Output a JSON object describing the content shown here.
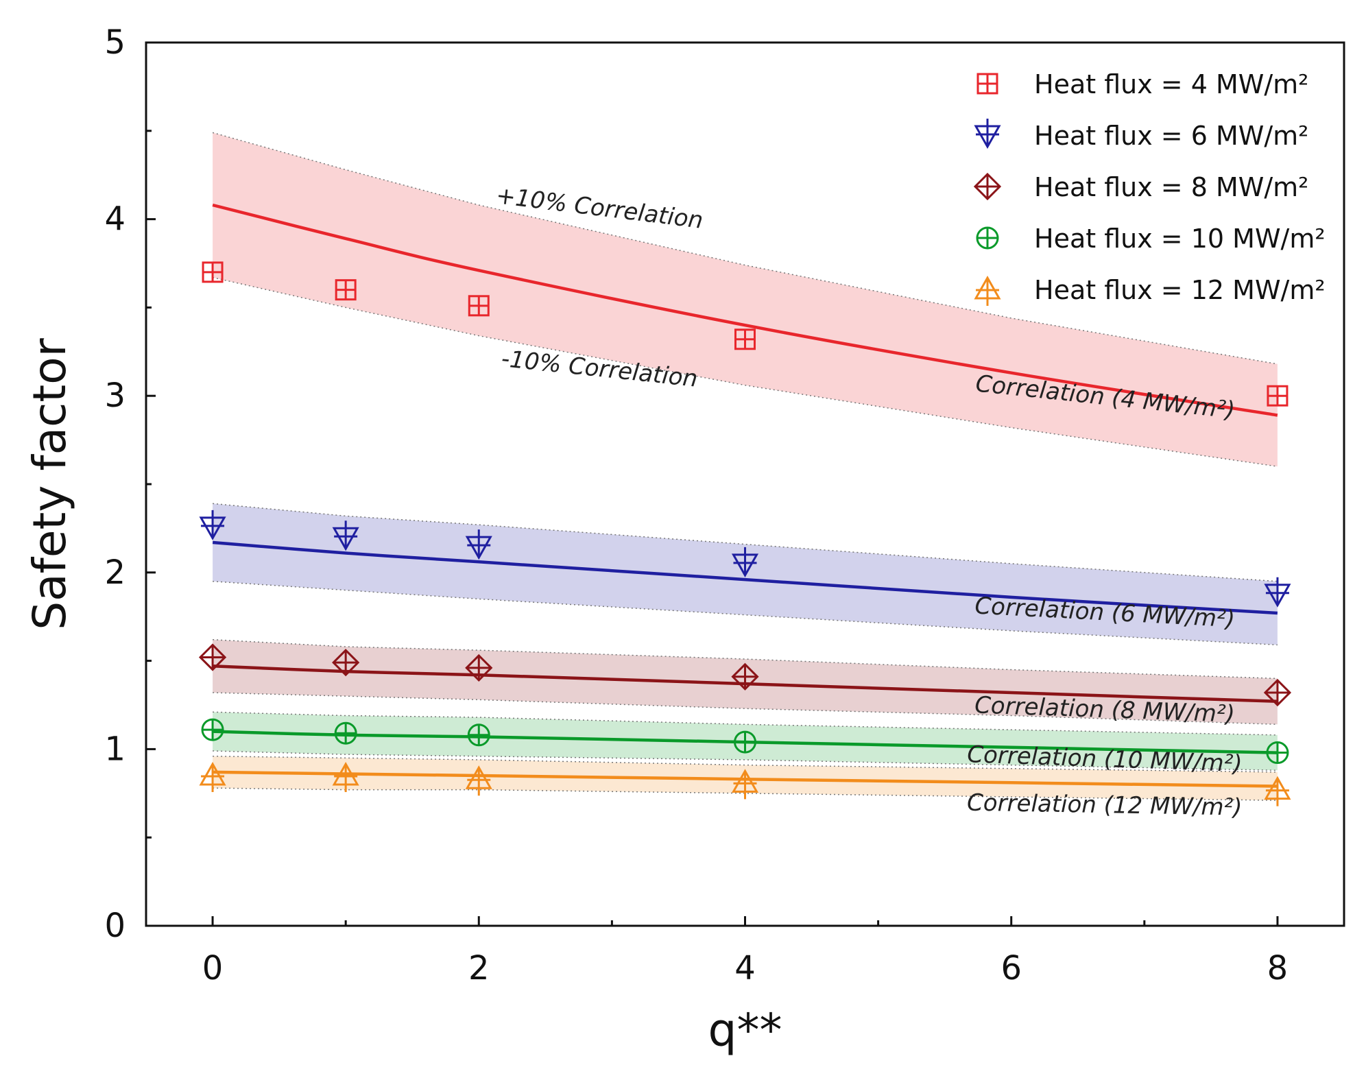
{
  "chart_data": {
    "type": "scatter",
    "xlabel": "q**",
    "ylabel": "Safety factor",
    "xlim": [
      -0.5,
      8.5
    ],
    "ylim": [
      0,
      5
    ],
    "xticks": [
      "0",
      "2",
      "4",
      "6",
      "8"
    ],
    "yticks": [
      "0",
      "1",
      "2",
      "3",
      "4",
      "5"
    ],
    "grid": false,
    "legend_position": "top-right",
    "series": [
      {
        "name": "Heat flux = 4 MW/m²",
        "color": "#e8262c",
        "marker": "square-plus",
        "x": [
          0,
          1,
          2,
          4,
          8
        ],
        "y": [
          3.7,
          3.6,
          3.51,
          3.32,
          3.0
        ],
        "correlation": {
          "x": [
            0,
            1,
            2,
            4,
            6,
            8
          ],
          "y": [
            4.08,
            3.89,
            3.71,
            3.4,
            3.13,
            2.89
          ]
        },
        "band": {
          "plus": [
            4.49,
            4.28,
            4.08,
            3.74,
            3.44,
            3.18
          ],
          "minus": [
            3.67,
            3.5,
            3.34,
            3.06,
            2.82,
            2.6
          ]
        }
      },
      {
        "name": "Heat flux = 6 MW/m²",
        "color": "#1f1fa0",
        "marker": "triangle-down-plus",
        "x": [
          0,
          1,
          2,
          4,
          8
        ],
        "y": [
          2.26,
          2.2,
          2.15,
          2.05,
          1.88
        ],
        "correlation": {
          "x": [
            0,
            1,
            2,
            4,
            6,
            8
          ],
          "y": [
            2.17,
            2.11,
            2.06,
            1.96,
            1.86,
            1.77
          ]
        },
        "band": {
          "plus": [
            2.39,
            2.32,
            2.27,
            2.16,
            2.05,
            1.95
          ],
          "minus": [
            1.95,
            1.9,
            1.85,
            1.76,
            1.67,
            1.59
          ]
        }
      },
      {
        "name": "Heat flux = 8 MW/m²",
        "color": "#8b1418",
        "marker": "diamond-plus",
        "x": [
          0,
          1,
          2,
          4,
          8
        ],
        "y": [
          1.52,
          1.49,
          1.46,
          1.41,
          1.32
        ],
        "correlation": {
          "x": [
            0,
            1,
            2,
            4,
            6,
            8
          ],
          "y": [
            1.47,
            1.44,
            1.42,
            1.37,
            1.32,
            1.27
          ]
        },
        "band": {
          "plus": [
            1.62,
            1.58,
            1.56,
            1.51,
            1.45,
            1.4
          ],
          "minus": [
            1.32,
            1.3,
            1.28,
            1.23,
            1.19,
            1.14
          ]
        }
      },
      {
        "name": "Heat flux = 10 MW/m²",
        "color": "#0a9a2a",
        "marker": "circle-plus",
        "x": [
          0,
          1,
          2,
          4,
          8
        ],
        "y": [
          1.11,
          1.09,
          1.08,
          1.04,
          0.98
        ],
        "correlation": {
          "x": [
            0,
            1,
            2,
            4,
            6,
            8
          ],
          "y": [
            1.1,
            1.08,
            1.07,
            1.04,
            1.01,
            0.98
          ]
        },
        "band": {
          "plus": [
            1.21,
            1.19,
            1.18,
            1.14,
            1.11,
            1.08
          ],
          "minus": [
            0.99,
            0.97,
            0.96,
            0.94,
            0.91,
            0.88
          ]
        }
      },
      {
        "name": "Heat flux = 12 MW/m²",
        "color": "#f28c1c",
        "marker": "triangle-up-plus",
        "x": [
          0,
          1,
          2,
          4,
          8
        ],
        "y": [
          0.85,
          0.85,
          0.83,
          0.81,
          0.77
        ],
        "correlation": {
          "x": [
            0,
            1,
            2,
            4,
            6,
            8
          ],
          "y": [
            0.87,
            0.86,
            0.85,
            0.83,
            0.81,
            0.79
          ]
        },
        "band": {
          "plus": [
            0.96,
            0.95,
            0.94,
            0.91,
            0.89,
            0.87
          ],
          "minus": [
            0.78,
            0.77,
            0.77,
            0.75,
            0.73,
            0.71
          ]
        }
      }
    ],
    "annotations": [
      {
        "text": "+10% Correlation",
        "x": 2.9,
        "y": 4.02,
        "angle_deg": 7
      },
      {
        "text": "-10% Correlation",
        "x": 2.9,
        "y": 3.11,
        "angle_deg": 6
      },
      {
        "text": "Correlation (4 MW/m²)",
        "x": 6.7,
        "y": 2.95,
        "angle_deg": 6
      },
      {
        "text": "Correlation (6 MW/m²)",
        "x": 6.7,
        "y": 1.73,
        "angle_deg": 3
      },
      {
        "text": "Correlation (8 MW/m²)",
        "x": 6.7,
        "y": 1.18,
        "angle_deg": 2
      },
      {
        "text": "Correlation (10 MW/m²)",
        "x": 6.7,
        "y": 0.9,
        "angle_deg": 2
      },
      {
        "text": "Correlation (12 MW/m²)",
        "x": 6.7,
        "y": 0.64,
        "angle_deg": 1
      }
    ]
  }
}
